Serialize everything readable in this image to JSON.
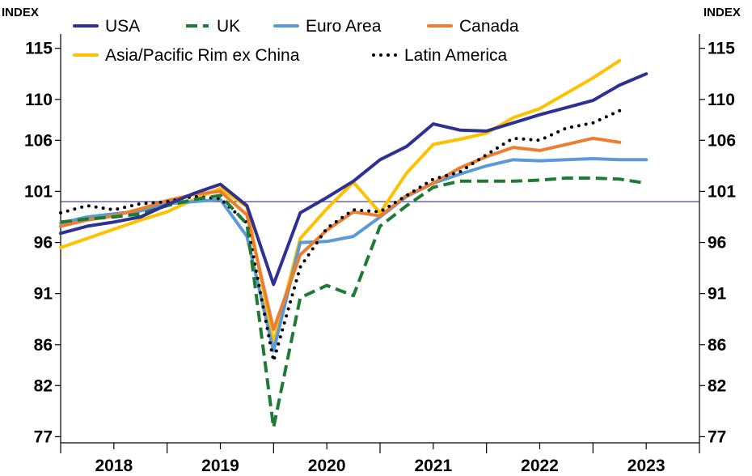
{
  "chart_data": {
    "type": "line",
    "title": "",
    "left_unit_label": "INDEX",
    "right_unit_label": "INDEX",
    "y_ticks": [
      "115",
      "110",
      "106",
      "101",
      "96",
      "91",
      "86",
      "82",
      "77"
    ],
    "ylim": [
      76.4,
      116.4
    ],
    "reference_line": 100,
    "grid": false,
    "x_tick_labels": [
      "2018",
      "2019",
      "2020",
      "2021",
      "2022",
      "2023"
    ],
    "x_range": [
      2018.0,
      2024.0
    ],
    "legend": "top-left",
    "series": [
      {
        "name": "USA",
        "color": "#2e3192",
        "style": "solid",
        "x": [
          2018.0,
          2018.25,
          2018.5,
          2018.75,
          2019.0,
          2019.25,
          2019.5,
          2019.75,
          2020.0,
          2020.25,
          2020.5,
          2020.75,
          2021.0,
          2021.25,
          2021.5,
          2021.75,
          2022.0,
          2022.25,
          2022.5,
          2022.75,
          2023.0,
          2023.25,
          2023.5
        ],
        "values": [
          96.9,
          97.6,
          98.0,
          98.5,
          99.7,
          100.8,
          101.7,
          99.6,
          91.9,
          98.9,
          100.4,
          102.0,
          104.1,
          105.4,
          107.6,
          107.0,
          106.9,
          107.7,
          108.5,
          109.2,
          109.9,
          111.4,
          112.5
        ]
      },
      {
        "name": "UK",
        "color": "#1f7a34",
        "style": "dashed",
        "x": [
          2018.0,
          2018.25,
          2018.5,
          2018.75,
          2019.0,
          2019.25,
          2019.5,
          2019.75,
          2020.0,
          2020.25,
          2020.5,
          2020.75,
          2021.0,
          2021.25,
          2021.5,
          2021.75,
          2022.0,
          2022.25,
          2022.5,
          2022.75,
          2023.0,
          2023.25,
          2023.5
        ],
        "values": [
          98.0,
          98.3,
          98.5,
          98.8,
          99.6,
          100.2,
          100.6,
          97.8,
          77.9,
          90.6,
          91.8,
          90.8,
          97.6,
          99.6,
          101.4,
          102.0,
          102.0,
          102.0,
          102.1,
          102.3,
          102.3,
          102.2,
          101.8
        ]
      },
      {
        "name": "Euro Area",
        "color": "#5b9bd5",
        "style": "solid",
        "x": [
          2018.0,
          2018.25,
          2018.5,
          2018.75,
          2019.0,
          2019.25,
          2019.5,
          2019.75,
          2020.0,
          2020.25,
          2020.5,
          2020.75,
          2021.0,
          2021.25,
          2021.5,
          2021.75,
          2022.0,
          2022.25,
          2022.5,
          2022.75,
          2023.0,
          2023.25,
          2023.5
        ],
        "values": [
          97.9,
          98.5,
          98.8,
          99.1,
          99.8,
          100.0,
          100.2,
          96.6,
          85.4,
          96.0,
          96.1,
          96.6,
          98.5,
          100.5,
          101.8,
          102.7,
          103.5,
          104.1,
          104.0,
          104.1,
          104.2,
          104.1,
          104.1
        ]
      },
      {
        "name": "Canada",
        "color": "#ed7d31",
        "style": "solid",
        "x": [
          2018.0,
          2018.25,
          2018.5,
          2018.75,
          2019.0,
          2019.25,
          2019.5,
          2019.75,
          2020.0,
          2020.25,
          2020.5,
          2020.75,
          2021.0,
          2021.25,
          2021.5,
          2021.75,
          2022.0,
          2022.25,
          2022.5,
          2022.75,
          2023.0,
          2023.25
        ],
        "values": [
          97.6,
          98.2,
          98.6,
          99.3,
          100.1,
          100.7,
          101.0,
          98.7,
          87.5,
          94.8,
          97.2,
          99.0,
          98.6,
          100.6,
          101.8,
          103.3,
          104.4,
          105.3,
          105.0,
          105.6,
          106.2,
          105.8
        ]
      },
      {
        "name": "Asia/Pacific Rim ex China",
        "color": "#ffc000",
        "style": "solid",
        "x": [
          2018.0,
          2018.25,
          2018.5,
          2018.75,
          2019.0,
          2019.25,
          2019.5,
          2019.75,
          2020.0,
          2020.25,
          2020.5,
          2020.75,
          2021.0,
          2021.25,
          2021.5,
          2021.75,
          2022.0,
          2022.25,
          2022.5,
          2022.75,
          2023.0,
          2023.25
        ],
        "values": [
          95.5,
          96.4,
          97.3,
          98.2,
          99.0,
          100.2,
          101.3,
          99.5,
          86.2,
          96.4,
          99.3,
          101.9,
          98.9,
          102.8,
          105.6,
          106.1,
          106.7,
          108.2,
          109.1,
          110.6,
          112.1,
          113.8
        ]
      },
      {
        "name": "Latin America",
        "color": "#000000",
        "style": "dotted",
        "x": [
          2018.0,
          2018.25,
          2018.5,
          2018.75,
          2019.0,
          2019.25,
          2019.5,
          2019.75,
          2020.0,
          2020.25,
          2020.5,
          2020.75,
          2021.0,
          2021.25,
          2021.5,
          2021.75,
          2022.0,
          2022.25,
          2022.5,
          2022.75,
          2023.0,
          2023.25
        ],
        "values": [
          98.9,
          99.6,
          99.2,
          99.8,
          100.0,
          100.5,
          100.3,
          97.9,
          84.4,
          93.6,
          97.4,
          99.2,
          99.0,
          100.6,
          102.2,
          102.9,
          104.6,
          106.2,
          106.0,
          107.2,
          107.7,
          108.9
        ]
      }
    ]
  }
}
